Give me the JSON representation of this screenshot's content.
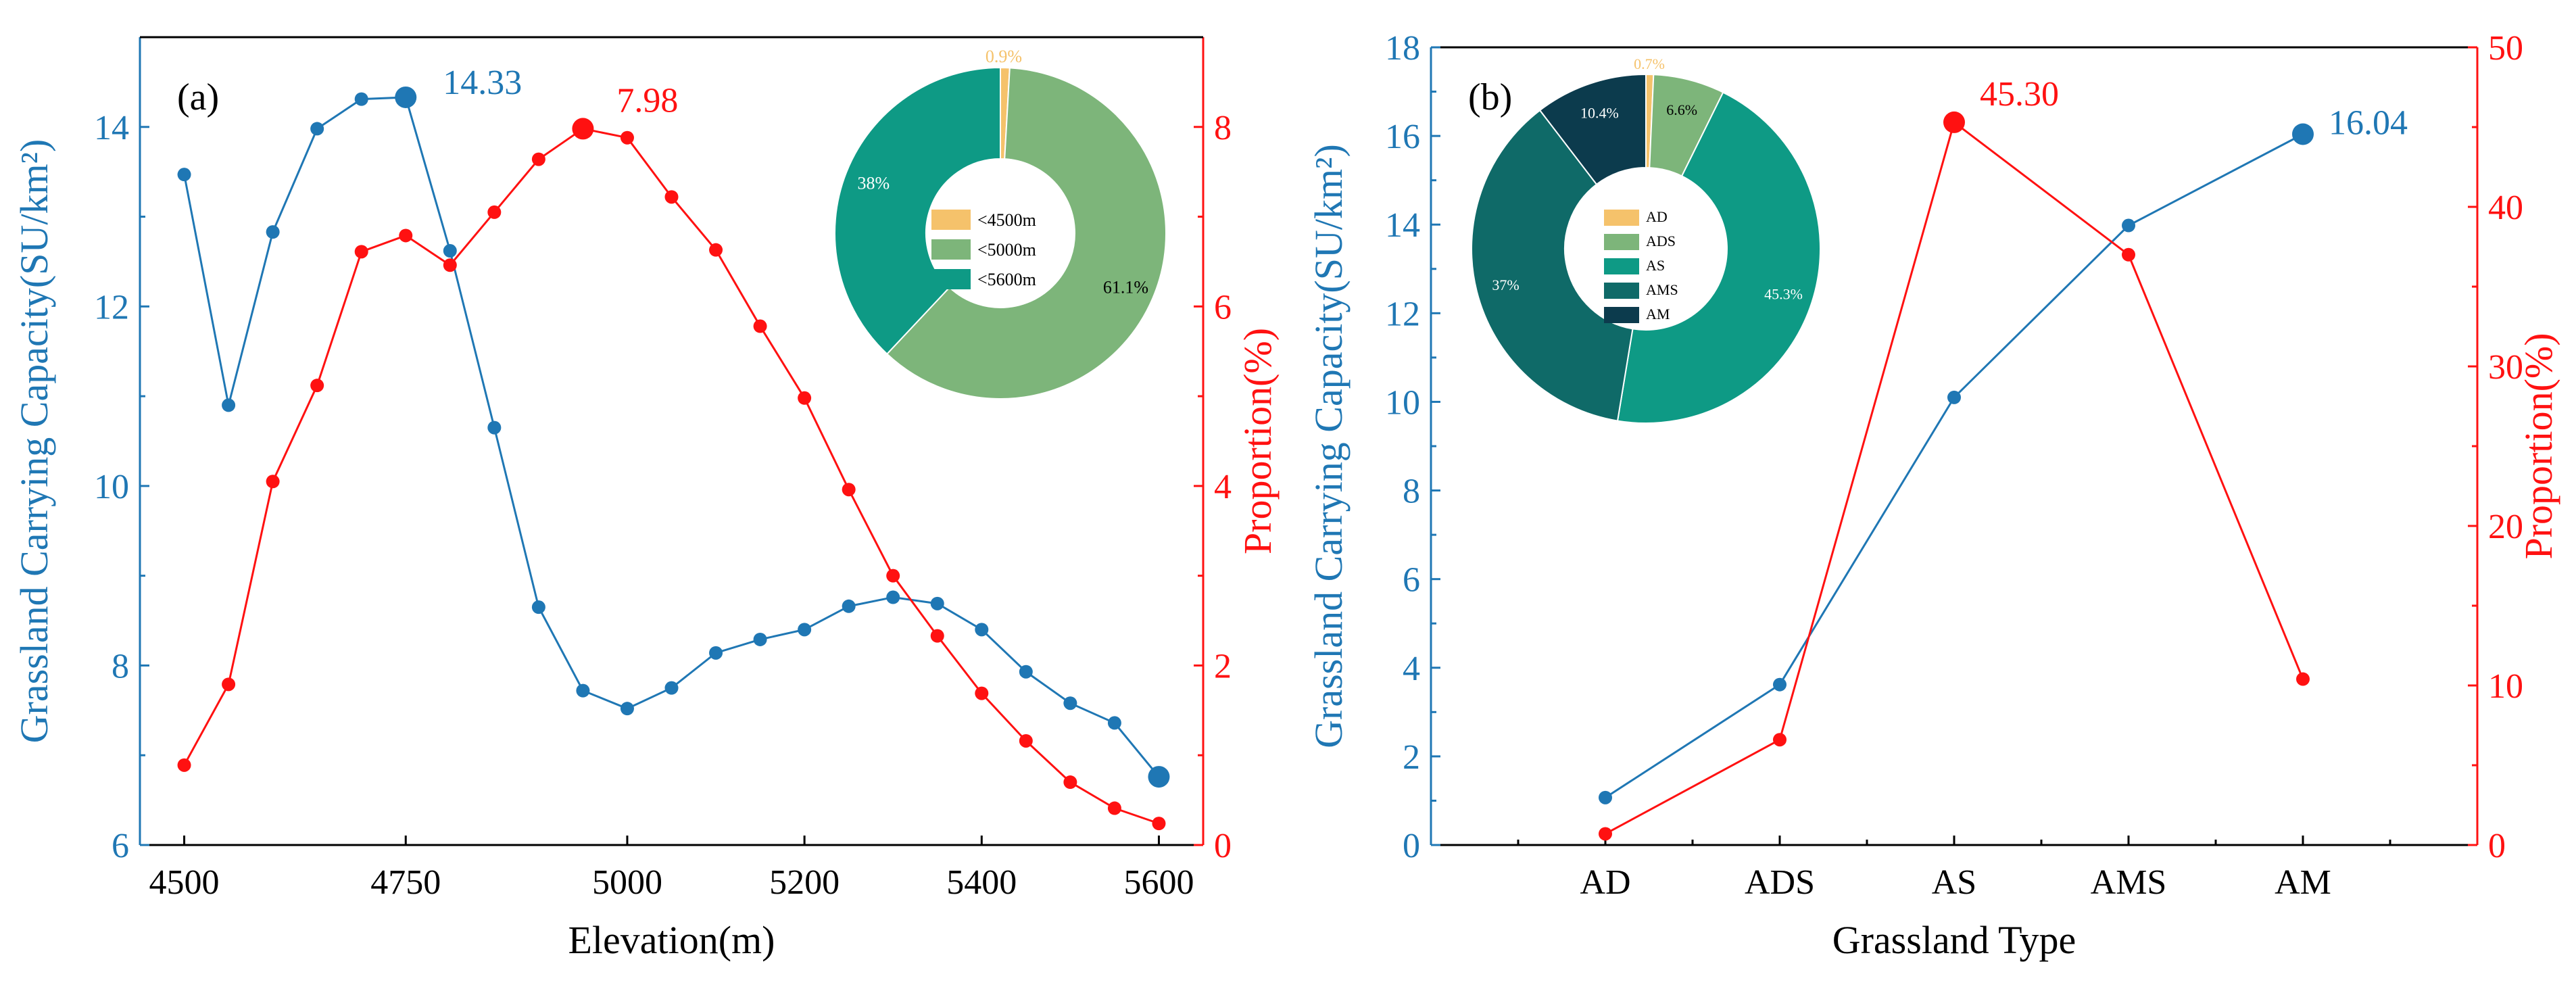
{
  "chart_data": [
    {
      "id": "a",
      "type": "line",
      "panel_label": "(a)",
      "xlabel": "Elevation(m)",
      "ylabel": "Grassland Carrying Capacity(SU/km²)",
      "y2label": "Proportion(%)",
      "xlim": [
        4450,
        5650
      ],
      "ylim": [
        6,
        15
      ],
      "y2lim": [
        0,
        9
      ],
      "xticks": [
        4500,
        4750,
        5000,
        5200,
        5400,
        5600
      ],
      "yticks": [
        6,
        8,
        10,
        12,
        14
      ],
      "y2ticks": [
        0,
        2,
        4,
        6,
        8
      ],
      "x": [
        4500,
        4550,
        4600,
        4650,
        4700,
        4750,
        4800,
        4850,
        4900,
        4950,
        5000,
        5050,
        5100,
        5150,
        5200,
        5250,
        5300,
        5350,
        5400,
        5450,
        5500,
        5550,
        5600
      ],
      "series": [
        {
          "name": "Grassland Carrying Capacity",
          "axis": "left",
          "color": "#1f77b4",
          "values": [
            13.47,
            10.9,
            12.83,
            13.98,
            14.31,
            14.33,
            12.62,
            10.65,
            8.65,
            7.72,
            7.52,
            7.75,
            8.14,
            8.29,
            8.4,
            8.66,
            8.76,
            8.69,
            8.4,
            7.93,
            7.58,
            7.36,
            6.76
          ],
          "highlight": [
            5,
            22
          ]
        },
        {
          "name": "Proportion",
          "axis": "right",
          "color": "#ff1111",
          "values": [
            0.89,
            1.79,
            4.05,
            5.12,
            6.61,
            6.79,
            6.46,
            7.05,
            7.64,
            7.98,
            7.88,
            7.22,
            6.63,
            5.78,
            4.98,
            3.96,
            3.0,
            2.33,
            1.69,
            1.16,
            0.7,
            0.41,
            0.24
          ],
          "highlight": [
            9
          ]
        }
      ],
      "annotations": [
        {
          "text": "14.33",
          "color": "#1f77b4"
        },
        {
          "text": "7.98",
          "color": "#ff1111"
        }
      ],
      "inset_pie": {
        "type": "pie",
        "donut": true,
        "slices": [
          {
            "label": "<4500m",
            "value": 0.9,
            "text": "0.9%",
            "color": "#f5c26b"
          },
          {
            "label": "<5000m",
            "value": 61.1,
            "text": "61.1%",
            "color": "#7db57a"
          },
          {
            "label": "<5600m",
            "value": 38,
            "text": "38%",
            "color": "#0e9a85"
          }
        ]
      }
    },
    {
      "id": "b",
      "type": "line",
      "panel_label": "(b)",
      "xlabel": "Grassland Type",
      "ylabel": "Grassland Carrying Capacity(SU/km²)",
      "y2label": "Proportion(%)",
      "categories": [
        "AD",
        "ADS",
        "AS",
        "AMS",
        "AM"
      ],
      "ylim": [
        0,
        18
      ],
      "y2lim": [
        0,
        50
      ],
      "yticks": [
        0,
        2,
        4,
        6,
        8,
        10,
        12,
        14,
        16,
        18
      ],
      "y2ticks": [
        0,
        10,
        20,
        30,
        40,
        50
      ],
      "series": [
        {
          "name": "Grassland Carrying Capacity",
          "axis": "left",
          "color": "#1f77b4",
          "values": [
            1.07,
            3.62,
            10.1,
            13.98,
            16.04
          ],
          "highlight": [
            4
          ]
        },
        {
          "name": "Proportion",
          "axis": "right",
          "color": "#ff1111",
          "values": [
            0.7,
            6.6,
            45.3,
            37.0,
            10.4
          ],
          "highlight": [
            2
          ]
        }
      ],
      "annotations": [
        {
          "text": "45.30",
          "color": "#ff1111"
        },
        {
          "text": "16.04",
          "color": "#1f77b4"
        }
      ],
      "inset_pie": {
        "type": "pie",
        "donut": true,
        "slices": [
          {
            "label": "AD",
            "value": 0.7,
            "text": "0.7%",
            "color": "#f5c26b"
          },
          {
            "label": "ADS",
            "value": 6.6,
            "text": "6.6%",
            "color": "#7db57a"
          },
          {
            "label": "AS",
            "value": 45.3,
            "text": "45.3%",
            "color": "#0e9a85"
          },
          {
            "label": "AMS",
            "value": 37,
            "text": "37%",
            "color": "#0f6a68"
          },
          {
            "label": "AM",
            "value": 10.4,
            "text": "10.4%",
            "color": "#0c3b4d"
          }
        ]
      }
    }
  ]
}
